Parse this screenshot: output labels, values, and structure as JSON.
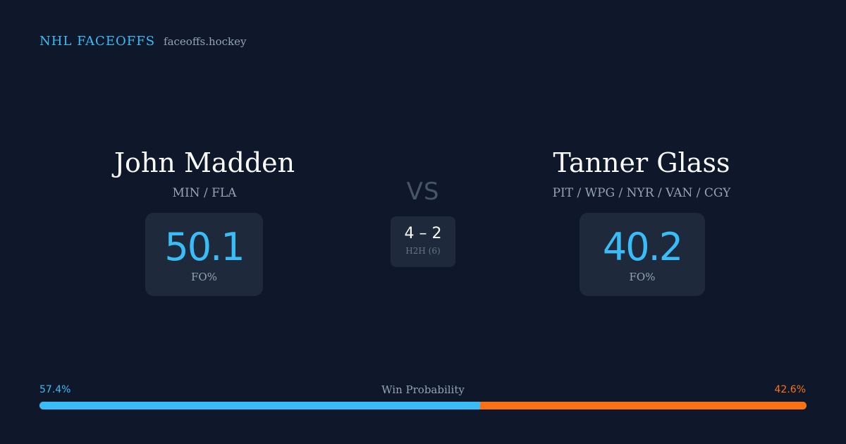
{
  "brand": {
    "name": "NHL FACEOFFS",
    "url": "faceoffs.hockey"
  },
  "players": {
    "left": {
      "name": "John Madden",
      "teams": "MIN / FLA",
      "stat_value": "50.1",
      "stat_label": "FO%"
    },
    "right": {
      "name": "Tanner Glass",
      "teams": "PIT / WPG / NYR / VAN / CGY",
      "stat_value": "40.2",
      "stat_label": "FO%"
    }
  },
  "vs_label": "VS",
  "head_to_head": {
    "score": "4 – 2",
    "label": "H2H (6)"
  },
  "win_probability": {
    "title": "Win Probability",
    "left_text": "57.4%",
    "right_text": "42.6%",
    "left_value": 57.4,
    "right_value": 42.6
  },
  "colors": {
    "background": "#0f172a",
    "card": "#1e293b",
    "accent_blue": "#38bdf8",
    "accent_orange": "#f97316",
    "muted_text": "#94a3b8"
  }
}
